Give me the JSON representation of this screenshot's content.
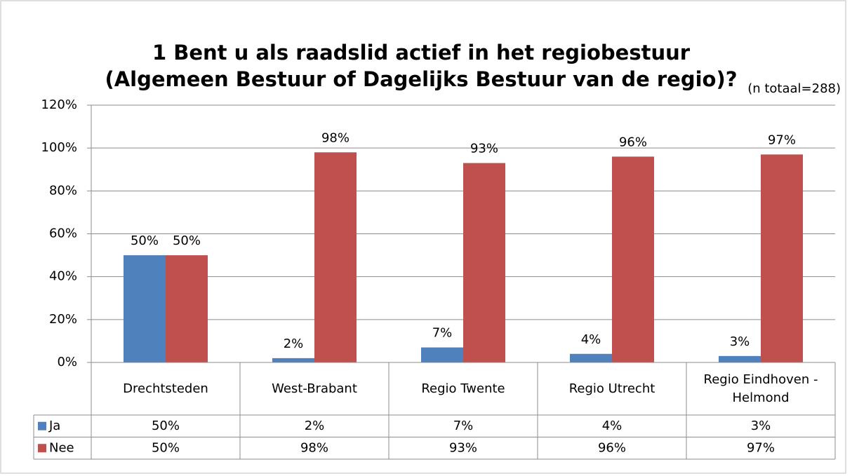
{
  "chart_data": {
    "type": "bar",
    "title": "1 Bent u als raadslid actief in het regiobestuur (Algemeen Bestuur of Dagelijks Bestuur van de regio)?",
    "subtitle": "(n totaal=288)",
    "categories": [
      "Drechtsteden",
      "West-Brabant",
      "Regio Twente",
      "Regio Utrecht",
      "Regio Eindhoven - Helmond"
    ],
    "series": [
      {
        "name": "Ja",
        "color": "#4f81bd",
        "values": [
          50,
          2,
          7,
          4,
          3
        ],
        "value_labels": [
          "50%",
          "2%",
          "7%",
          "4%",
          "3%"
        ]
      },
      {
        "name": "Nee",
        "color": "#c0504d",
        "values": [
          50,
          98,
          93,
          96,
          97
        ],
        "value_labels": [
          "50%",
          "98%",
          "93%",
          "96%",
          "97%"
        ]
      }
    ],
    "ylim": [
      0,
      120
    ],
    "yticks": [
      {
        "value": 0,
        "label": "0%"
      },
      {
        "value": 20,
        "label": "20%"
      },
      {
        "value": 40,
        "label": "40%"
      },
      {
        "value": 60,
        "label": "60%"
      },
      {
        "value": 80,
        "label": "80%"
      },
      {
        "value": 100,
        "label": "100%"
      },
      {
        "value": 120,
        "label": "120%"
      }
    ],
    "grid": true
  }
}
